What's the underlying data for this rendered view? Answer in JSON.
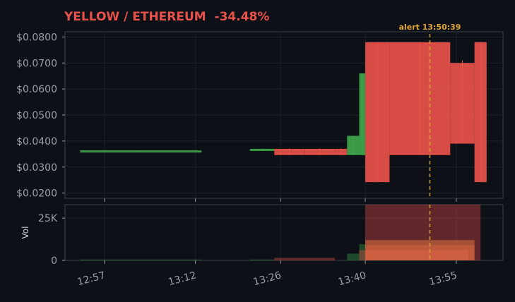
{
  "title": "YELLOW / ETHEREUM  -34.48%",
  "colors": {
    "background": "#0d1017",
    "title": "#e8524a",
    "up": "#3fa64a",
    "down": "#e8524a",
    "alert": "#e0a53a",
    "text": "#9aa0a8",
    "frame": "#3a3f47"
  },
  "chart_data": [
    {
      "type": "candlestick",
      "title": "YELLOW / ETHEREUM  -34.48%",
      "ylabel": "",
      "ylim": [
        0.018,
        0.082
      ],
      "y_ticks": [
        "$0.0200",
        "$0.0300",
        "$0.0400",
        "$0.0500",
        "$0.0600",
        "$0.0700",
        "$0.0800"
      ],
      "y_tick_values": [
        0.02,
        0.03,
        0.04,
        0.05,
        0.06,
        0.07,
        0.08
      ],
      "x_ticks": [
        "12:57",
        "13:12",
        "13:26",
        "13:40",
        "13:55"
      ],
      "annotation": {
        "label": "alert 13:50:39",
        "time": "13:50:39"
      },
      "candles": [
        {
          "t": "12:53–13:13",
          "open": 0.0362,
          "high": 0.0364,
          "low": 0.0361,
          "close": 0.0364,
          "dir": "up"
        },
        {
          "t": "13:21–13:25",
          "open": 0.0366,
          "high": 0.0371,
          "low": 0.0366,
          "close": 0.037,
          "dir": "up"
        },
        {
          "t": "13:25–13:30",
          "open": 0.037,
          "high": 0.0372,
          "low": 0.0346,
          "close": 0.0346,
          "dir": "down"
        },
        {
          "t": "13:30–13:35",
          "open": 0.037,
          "high": 0.0372,
          "low": 0.0346,
          "close": 0.0346,
          "dir": "down"
        },
        {
          "t": "13:35–13:37",
          "open": 0.037,
          "high": 0.0372,
          "low": 0.0346,
          "close": 0.0346,
          "dir": "down"
        },
        {
          "t": "13:37–13:39",
          "open": 0.0346,
          "high": 0.042,
          "low": 0.0346,
          "close": 0.042,
          "dir": "up"
        },
        {
          "t": "13:39–13:40",
          "open": 0.0346,
          "high": 0.066,
          "low": 0.0346,
          "close": 0.066,
          "dir": "up"
        },
        {
          "t": "13:40–13:44",
          "open": 0.078,
          "high": 0.078,
          "low": 0.0242,
          "close": 0.0242,
          "dir": "down"
        },
        {
          "t": "13:44–13:54",
          "open": 0.078,
          "high": 0.078,
          "low": 0.0346,
          "close": 0.0346,
          "dir": "down"
        },
        {
          "t": "13:54–13:58",
          "open": 0.07,
          "high": 0.071,
          "low": 0.039,
          "close": 0.039,
          "dir": "down"
        },
        {
          "t": "13:58–14:00",
          "open": 0.078,
          "high": 0.078,
          "low": 0.0242,
          "close": 0.0242,
          "dir": "down"
        }
      ]
    },
    {
      "type": "bar",
      "ylabel": "Vol",
      "ylim": [
        0,
        33000
      ],
      "y_ticks": [
        "0",
        "25K"
      ],
      "y_tick_values": [
        0,
        25000
      ],
      "x_ticks": [
        "12:57",
        "13:12",
        "13:26",
        "13:40",
        "13:55"
      ],
      "volumes": [
        {
          "t": "12:53–13:13",
          "value": 500,
          "dir": "up"
        },
        {
          "t": "13:21–13:25",
          "value": 500,
          "dir": "up"
        },
        {
          "t": "13:25–13:35",
          "value": 1500,
          "dir": "down"
        },
        {
          "t": "13:37–13:39",
          "value": 4000,
          "dir": "up"
        },
        {
          "t": "13:39–13:40",
          "value": 9500,
          "dir": "up"
        },
        {
          "t": "13:40–13:59",
          "value": 33000,
          "dir": "down"
        },
        {
          "t": "13:40–13:58",
          "value": 12000,
          "dir": "down"
        },
        {
          "t": "13:40–13:58",
          "value": 9000,
          "dir": "down"
        },
        {
          "t": "13:39–13:57",
          "value": 6000,
          "dir": "down"
        }
      ]
    }
  ]
}
